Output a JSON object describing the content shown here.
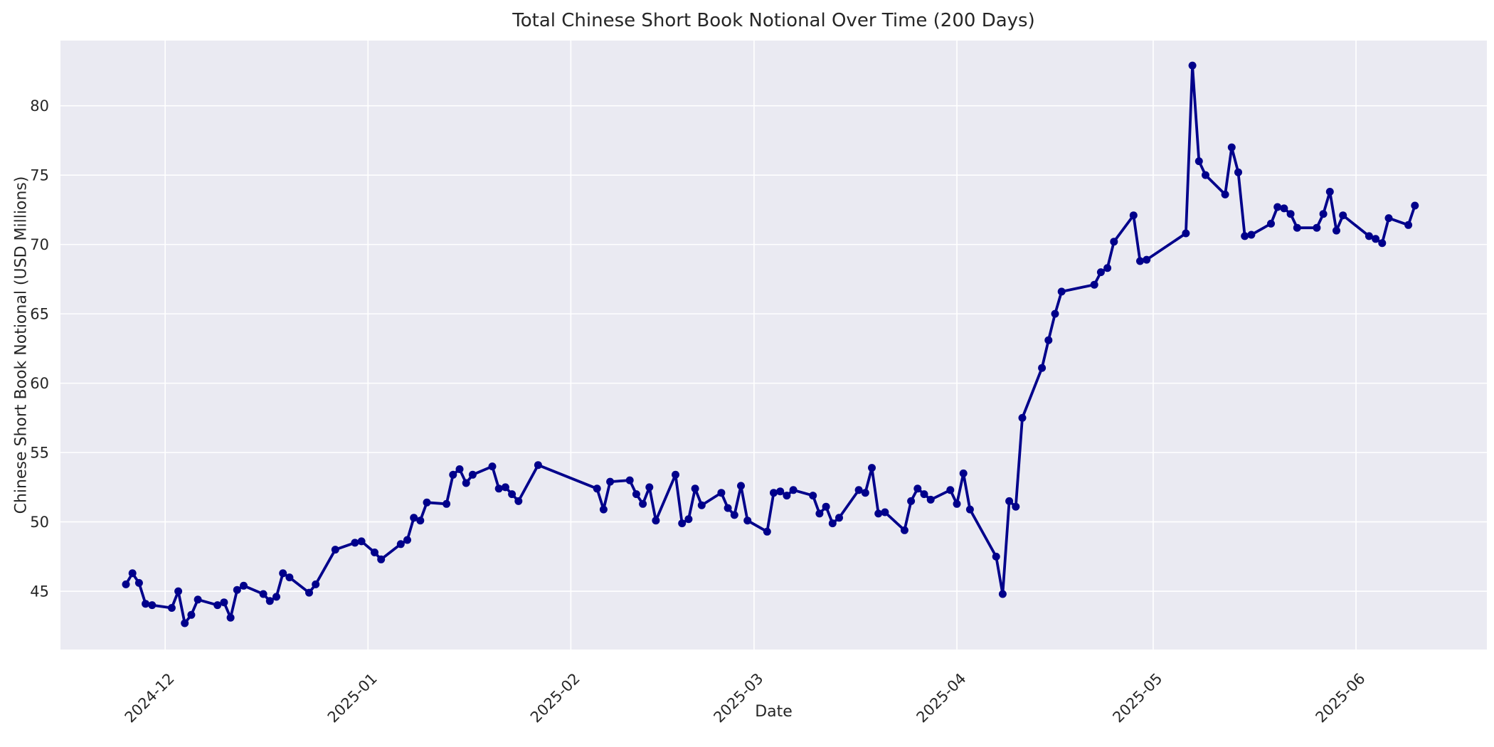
{
  "chart_data": {
    "type": "line",
    "title": "Total Chinese Short Book Notional Over Time (200 Days)",
    "xlabel": "Date",
    "ylabel": "Chinese Short Book Notional (USD Millions)",
    "legend": false,
    "grid": true,
    "axes_background": "#eaeaf2",
    "figure_background": "#ffffff",
    "grid_color": "#ffffff",
    "text_color": "#262626",
    "line_color": "#00008b",
    "marker": "o",
    "y_ticks": [
      45,
      50,
      55,
      60,
      65,
      70,
      75,
      80
    ],
    "ylim": [
      40.8,
      84.7
    ],
    "xlim": [
      "2024-11-15",
      "2025-06-21"
    ],
    "x_ticks": [
      {
        "date": "2024-12-01",
        "label": "2024-12"
      },
      {
        "date": "2025-01-01",
        "label": "2025-01"
      },
      {
        "date": "2025-02-01",
        "label": "2025-02"
      },
      {
        "date": "2025-03-01",
        "label": "2025-03"
      },
      {
        "date": "2025-04-01",
        "label": "2025-04"
      },
      {
        "date": "2025-05-01",
        "label": "2025-05"
      },
      {
        "date": "2025-06-01",
        "label": "2025-06"
      }
    ],
    "series": [
      {
        "name": "Total Chinese Short Book Notional",
        "dates": [
          "2024-11-25",
          "2024-11-26",
          "2024-11-27",
          "2024-11-28",
          "2024-11-29",
          "2024-12-02",
          "2024-12-03",
          "2024-12-04",
          "2024-12-05",
          "2024-12-06",
          "2024-12-09",
          "2024-12-10",
          "2024-12-11",
          "2024-12-12",
          "2024-12-13",
          "2024-12-16",
          "2024-12-17",
          "2024-12-18",
          "2024-12-19",
          "2024-12-20",
          "2024-12-23",
          "2024-12-24",
          "2024-12-27",
          "2024-12-30",
          "2024-12-31",
          "2025-01-02",
          "2025-01-03",
          "2025-01-06",
          "2025-01-07",
          "2025-01-08",
          "2025-01-09",
          "2025-01-10",
          "2025-01-13",
          "2025-01-14",
          "2025-01-15",
          "2025-01-16",
          "2025-01-17",
          "2025-01-20",
          "2025-01-21",
          "2025-01-22",
          "2025-01-23",
          "2025-01-24",
          "2025-01-27",
          "2025-02-05",
          "2025-02-06",
          "2025-02-07",
          "2025-02-10",
          "2025-02-11",
          "2025-02-12",
          "2025-02-13",
          "2025-02-14",
          "2025-02-17",
          "2025-02-18",
          "2025-02-19",
          "2025-02-20",
          "2025-02-21",
          "2025-02-24",
          "2025-02-25",
          "2025-02-26",
          "2025-02-27",
          "2025-02-28",
          "2025-03-03",
          "2025-03-04",
          "2025-03-05",
          "2025-03-06",
          "2025-03-07",
          "2025-03-10",
          "2025-03-11",
          "2025-03-12",
          "2025-03-13",
          "2025-03-14",
          "2025-03-17",
          "2025-03-18",
          "2025-03-19",
          "2025-03-20",
          "2025-03-21",
          "2025-03-24",
          "2025-03-25",
          "2025-03-26",
          "2025-03-27",
          "2025-03-28",
          "2025-03-31",
          "2025-04-01",
          "2025-04-02",
          "2025-04-03",
          "2025-04-07",
          "2025-04-08",
          "2025-04-09",
          "2025-04-10",
          "2025-04-11",
          "2025-04-14",
          "2025-04-15",
          "2025-04-16",
          "2025-04-17",
          "2025-04-22",
          "2025-04-23",
          "2025-04-24",
          "2025-04-25",
          "2025-04-28",
          "2025-04-29",
          "2025-04-30",
          "2025-05-06",
          "2025-05-07",
          "2025-05-08",
          "2025-05-09",
          "2025-05-12",
          "2025-05-13",
          "2025-05-14",
          "2025-05-15",
          "2025-05-16",
          "2025-05-19",
          "2025-05-20",
          "2025-05-21",
          "2025-05-22",
          "2025-05-23",
          "2025-05-26",
          "2025-05-27",
          "2025-05-28",
          "2025-05-29",
          "2025-05-30",
          "2025-06-03",
          "2025-06-04",
          "2025-06-05",
          "2025-06-06",
          "2025-06-09",
          "2025-06-10"
        ],
        "values": [
          45.5,
          46.3,
          45.6,
          44.1,
          44.0,
          43.8,
          45.0,
          42.7,
          43.3,
          44.4,
          44.0,
          44.2,
          43.1,
          45.1,
          45.4,
          44.8,
          44.3,
          44.6,
          46.3,
          46.0,
          44.9,
          45.5,
          48.0,
          48.5,
          48.6,
          47.8,
          47.3,
          48.4,
          48.7,
          50.3,
          50.1,
          51.4,
          51.3,
          53.4,
          53.8,
          52.8,
          53.4,
          54.0,
          52.4,
          52.5,
          52.0,
          51.5,
          54.1,
          52.4,
          50.9,
          52.9,
          53.0,
          52.0,
          51.3,
          52.5,
          50.1,
          53.4,
          49.9,
          50.2,
          52.4,
          51.2,
          52.1,
          51.0,
          50.5,
          52.6,
          50.1,
          49.3,
          52.1,
          52.2,
          51.9,
          52.3,
          51.9,
          50.6,
          51.1,
          49.9,
          50.3,
          52.3,
          52.1,
          53.9,
          50.6,
          50.7,
          49.4,
          51.5,
          52.4,
          52.0,
          51.6,
          52.3,
          51.3,
          53.5,
          50.9,
          47.5,
          44.8,
          51.5,
          51.1,
          57.5,
          61.1,
          63.1,
          65.0,
          66.6,
          67.1,
          68.0,
          68.3,
          70.2,
          72.1,
          68.8,
          68.9,
          70.8,
          82.9,
          76.0,
          75.0,
          73.6,
          77.0,
          75.2,
          70.6,
          70.7,
          71.5,
          72.7,
          72.6,
          72.2,
          71.2,
          71.2,
          72.2,
          73.8,
          71.0,
          72.1,
          70.6,
          70.4,
          70.1,
          71.9,
          71.4,
          72.8
        ]
      }
    ]
  }
}
